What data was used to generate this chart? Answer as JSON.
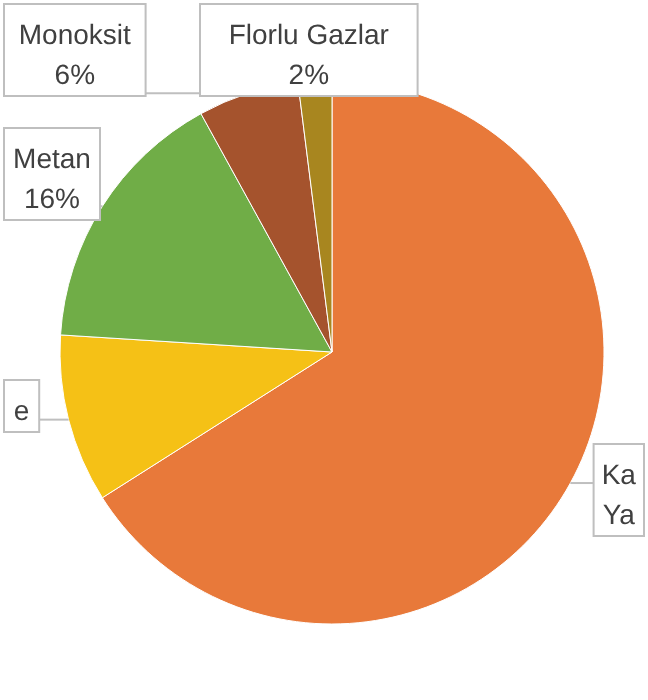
{
  "chart_data": {
    "type": "pie",
    "categories": [
      "Ka",
      "e",
      "Metan",
      "Monoksit",
      "Florlu Gazlar"
    ],
    "values": [
      66,
      10,
      16,
      6,
      2
    ],
    "colors": [
      "#e8793a",
      "#f5c116",
      "#70ad47",
      "#a5532d",
      "#a8861f"
    ],
    "value_labels": [
      null,
      null,
      "16%",
      "6%",
      "2%"
    ],
    "annotations": [
      "Ya"
    ]
  }
}
